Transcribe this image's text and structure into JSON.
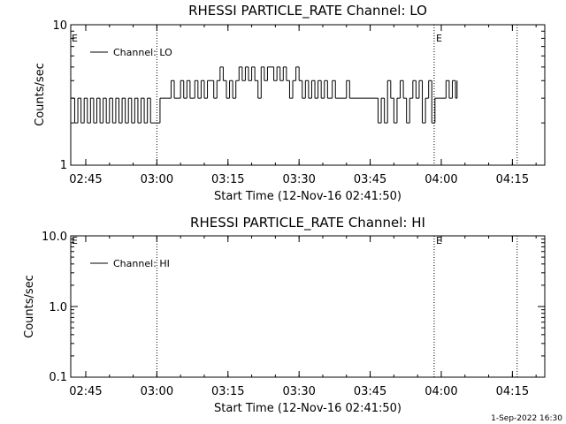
{
  "chart_data": [
    {
      "type": "line",
      "title": "RHESSI PARTICLE_RATE Channel: LO",
      "xlabel": "Start Time (12-Nov-16 02:41:50)",
      "ylabel": "Counts/sec",
      "yscale": "log",
      "ylim": [
        1,
        10
      ],
      "xlim": [
        "02:41:50",
        "04:21:50"
      ],
      "x_ticks": [
        "02:45",
        "03:00",
        "03:15",
        "03:30",
        "03:45",
        "04:00",
        "04:15"
      ],
      "y_tick_labels": [
        "1",
        "10"
      ],
      "legend": {
        "position": "top-left",
        "label": "Channel: LO"
      },
      "event_markers": [
        {
          "time": "03:00",
          "label": ""
        },
        {
          "time": "03:58:30",
          "label": "E"
        },
        {
          "time": "04:16",
          "label": ""
        }
      ],
      "edge_flag": "E",
      "series": [
        {
          "name": "Channel: LO",
          "steps": [
            [
              "02:42:00",
              3
            ],
            [
              "02:42:40",
              2
            ],
            [
              "02:43:20",
              3
            ],
            [
              "02:44:00",
              2
            ],
            [
              "02:44:40",
              3
            ],
            [
              "02:45:20",
              2
            ],
            [
              "02:46:00",
              3
            ],
            [
              "02:46:40",
              2
            ],
            [
              "02:47:20",
              3
            ],
            [
              "02:48:00",
              2
            ],
            [
              "02:48:40",
              3
            ],
            [
              "02:49:20",
              2
            ],
            [
              "02:50:00",
              3
            ],
            [
              "02:50:40",
              2
            ],
            [
              "02:51:20",
              3
            ],
            [
              "02:52:00",
              2
            ],
            [
              "02:52:40",
              3
            ],
            [
              "02:53:20",
              2
            ],
            [
              "02:54:00",
              3
            ],
            [
              "02:54:40",
              2
            ],
            [
              "02:55:20",
              3
            ],
            [
              "02:56:00",
              2
            ],
            [
              "02:56:40",
              3
            ],
            [
              "02:57:20",
              2
            ],
            [
              "02:58:00",
              3
            ],
            [
              "02:58:40",
              2
            ],
            [
              "03:00:40",
              3
            ],
            [
              "03:02:00",
              3
            ],
            [
              "03:03:00",
              4
            ],
            [
              "03:03:40",
              3
            ],
            [
              "03:05:00",
              4
            ],
            [
              "03:05:40",
              3
            ],
            [
              "03:06:20",
              4
            ],
            [
              "03:07:00",
              3
            ],
            [
              "03:08:00",
              4
            ],
            [
              "03:08:40",
              3
            ],
            [
              "03:09:20",
              4
            ],
            [
              "03:10:00",
              3
            ],
            [
              "03:10:40",
              4
            ],
            [
              "03:11:20",
              4
            ],
            [
              "03:12:00",
              3
            ],
            [
              "03:12:40",
              4
            ],
            [
              "03:13:20",
              5
            ],
            [
              "03:14:00",
              4
            ],
            [
              "03:14:40",
              3
            ],
            [
              "03:15:20",
              4
            ],
            [
              "03:16:00",
              3
            ],
            [
              "03:16:40",
              4
            ],
            [
              "03:17:20",
              5
            ],
            [
              "03:18:00",
              4
            ],
            [
              "03:18:40",
              5
            ],
            [
              "03:19:20",
              4
            ],
            [
              "03:20:00",
              5
            ],
            [
              "03:20:40",
              4
            ],
            [
              "03:21:20",
              3
            ],
            [
              "03:22:00",
              5
            ],
            [
              "03:22:40",
              4
            ],
            [
              "03:23:20",
              5
            ],
            [
              "03:24:00",
              5
            ],
            [
              "03:24:40",
              4
            ],
            [
              "03:25:20",
              5
            ],
            [
              "03:26:00",
              4
            ],
            [
              "03:26:40",
              5
            ],
            [
              "03:27:20",
              4
            ],
            [
              "03:28:00",
              3
            ],
            [
              "03:28:40",
              4
            ],
            [
              "03:29:20",
              5
            ],
            [
              "03:30:00",
              4
            ],
            [
              "03:30:40",
              3
            ],
            [
              "03:31:20",
              4
            ],
            [
              "03:32:00",
              3
            ],
            [
              "03:32:40",
              4
            ],
            [
              "03:33:20",
              3
            ],
            [
              "03:34:00",
              4
            ],
            [
              "03:34:40",
              3
            ],
            [
              "03:35:20",
              4
            ],
            [
              "03:36:00",
              3
            ],
            [
              "03:37:00",
              4
            ],
            [
              "03:37:40",
              3
            ],
            [
              "03:39:00",
              3
            ],
            [
              "03:40:00",
              4
            ],
            [
              "03:40:40",
              3
            ],
            [
              "03:42:00",
              3
            ],
            [
              "03:46:00",
              3
            ],
            [
              "03:46:40",
              2
            ],
            [
              "03:47:20",
              3
            ],
            [
              "03:48:00",
              2
            ],
            [
              "03:48:40",
              4
            ],
            [
              "03:49:20",
              3
            ],
            [
              "03:50:00",
              2
            ],
            [
              "03:50:40",
              3
            ],
            [
              "03:51:20",
              4
            ],
            [
              "03:52:00",
              3
            ],
            [
              "03:52:40",
              2
            ],
            [
              "03:53:20",
              3
            ],
            [
              "03:54:00",
              4
            ],
            [
              "03:54:40",
              3
            ],
            [
              "03:55:20",
              4
            ],
            [
              "03:56:00",
              2
            ],
            [
              "03:56:40",
              3
            ],
            [
              "03:57:20",
              4
            ],
            [
              "03:58:00",
              2
            ],
            [
              "03:58:40",
              3
            ],
            [
              "03:59:20",
              3
            ],
            [
              "04:00:00",
              3
            ],
            [
              "04:01:00",
              4
            ],
            [
              "04:01:40",
              3
            ],
            [
              "04:02:20",
              4
            ],
            [
              "04:03:00",
              3
            ],
            [
              "04:03:20",
              4
            ]
          ]
        }
      ]
    },
    {
      "type": "line",
      "title": "RHESSI PARTICLE_RATE Channel: HI",
      "xlabel": "Start Time (12-Nov-16 02:41:50)",
      "ylabel": "Counts/sec",
      "yscale": "log",
      "ylim": [
        0.1,
        10
      ],
      "xlim": [
        "02:41:50",
        "04:21:50"
      ],
      "x_ticks": [
        "02:45",
        "03:00",
        "03:15",
        "03:30",
        "03:45",
        "04:00",
        "04:15"
      ],
      "y_tick_labels": [
        "0.1",
        "1.0",
        "10.0"
      ],
      "legend": {
        "position": "top-left",
        "label": "Channel: HI"
      },
      "event_markers": [
        {
          "time": "03:00",
          "label": ""
        },
        {
          "time": "03:58:30",
          "label": "E"
        },
        {
          "time": "04:16",
          "label": ""
        }
      ],
      "edge_flag": "E",
      "series": [
        {
          "name": "Channel: HI",
          "steps": []
        }
      ]
    }
  ],
  "footer": {
    "timestamp": "1-Sep-2022 16:30"
  }
}
